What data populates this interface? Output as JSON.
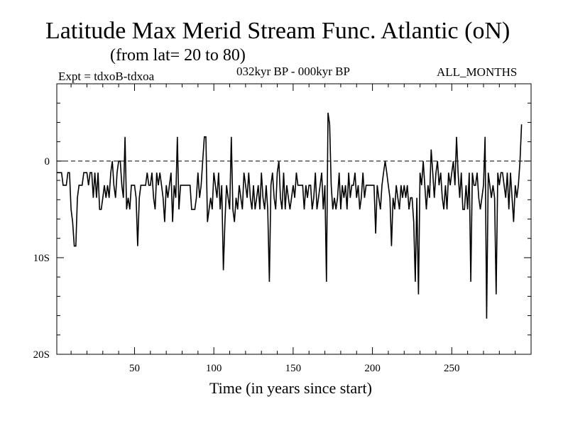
{
  "header": {
    "title": "Latitude Max Merid Stream Func. Atlantic (oN)",
    "subtitle": "(from lat= 20 to 80)",
    "experiment": "Expt = tdxoB-tdxoa",
    "period": "032kyr BP - 000kyr BP",
    "months": "ALL_MONTHS"
  },
  "chart_data": {
    "type": "line",
    "title": "Latitude Max Merid Stream Func. Atlantic (oN)",
    "subtitle": "(from lat= 20 to 80)",
    "xlabel": "Time (in years since start)",
    "ylabel": "",
    "xlim": [
      1,
      300
    ],
    "ylim": [
      -20,
      8
    ],
    "x_ticks": [
      50,
      100,
      150,
      200,
      250
    ],
    "x_tick_labels": [
      "50",
      "100",
      "150",
      "200",
      "250"
    ],
    "y_ticks": [
      0,
      -10,
      -20
    ],
    "y_tick_labels": [
      "0",
      "10S",
      "20S"
    ],
    "reference_line": {
      "y": 0,
      "style": "dashed"
    },
    "grid": false,
    "x_start": 1,
    "x_step": 1,
    "series": [
      {
        "values": [
          -1.2,
          -1.2,
          -1.2,
          -1.2,
          -2.5,
          -2.5,
          -2.5,
          -1.2,
          -1.2,
          -5.0,
          -6.3,
          -8.8,
          -8.8,
          -3.8,
          -2.5,
          -2.5,
          -2.5,
          -1.2,
          -1.2,
          -1.2,
          -2.5,
          -1.2,
          -1.2,
          -3.8,
          -1.2,
          -3.8,
          -1.2,
          -5.0,
          -5.0,
          -3.8,
          -2.5,
          -3.8,
          -2.5,
          -3.8,
          -1.2,
          0.0,
          -2.5,
          -3.8,
          -1.2,
          0.0,
          0.0,
          -2.5,
          -3.8,
          2.5,
          -5.0,
          -3.8,
          -5.0,
          -2.5,
          -2.5,
          -2.5,
          -3.8,
          -8.8,
          -3.8,
          -2.5,
          -2.5,
          -2.5,
          -2.5,
          -1.2,
          -2.5,
          -2.5,
          -1.2,
          -3.8,
          -5.0,
          -1.2,
          -2.5,
          -1.2,
          -2.5,
          -3.8,
          -6.3,
          -2.5,
          -3.8,
          -2.5,
          -1.2,
          -6.3,
          -2.5,
          -3.8,
          2.5,
          -5.0,
          -2.5,
          -2.5,
          -2.5,
          -2.5,
          -2.5,
          -2.5,
          -2.5,
          -5.0,
          -5.0,
          -5.0,
          -3.8,
          -1.2,
          -3.8,
          -2.5,
          0.0,
          2.5,
          2.5,
          -6.3,
          -5.0,
          -3.8,
          -5.0,
          -1.2,
          -2.5,
          -3.8,
          -1.2,
          -5.0,
          -2.5,
          -11.3,
          -6.3,
          -2.5,
          -3.8,
          -5.0,
          2.5,
          -5.0,
          -6.3,
          -3.8,
          -5.0,
          -2.5,
          -3.8,
          -5.0,
          -1.2,
          -2.5,
          -3.8,
          -1.2,
          -3.8,
          -5.0,
          -2.5,
          -5.0,
          -3.8,
          -2.5,
          -5.0,
          -1.2,
          -3.8,
          -5.0,
          -2.5,
          -5.0,
          -12.5,
          -2.5,
          -1.2,
          -3.8,
          -5.0,
          -1.2,
          0.0,
          -3.8,
          -5.0,
          -1.2,
          -5.0,
          -2.5,
          -3.8,
          -5.0,
          -3.8,
          -2.5,
          -3.8,
          -1.2,
          -2.5,
          -2.5,
          -2.5,
          -2.5,
          -5.0,
          -2.5,
          -3.8,
          -2.5,
          -2.5,
          -5.0,
          -3.8,
          -1.2,
          -5.0,
          -3.8,
          -2.5,
          -1.2,
          -5.0,
          -2.5,
          -12.5,
          5.0,
          3.8,
          -2.5,
          -5.0,
          -3.8,
          -5.0,
          -3.8,
          -1.2,
          -5.0,
          -2.5,
          -3.8,
          -2.5,
          -5.0,
          -1.2,
          -3.8,
          -2.5,
          -2.5,
          -1.2,
          -3.8,
          -2.5,
          -5.0,
          -3.8,
          -1.2,
          -3.8,
          -2.5,
          -2.5,
          -2.5,
          -2.5,
          -2.5,
          -2.5,
          -7.5,
          -2.5,
          -3.8,
          -5.0,
          -2.5,
          -1.2,
          0.0,
          -1.2,
          -2.5,
          -3.8,
          -8.8,
          -3.8,
          -5.0,
          -2.5,
          -3.8,
          -5.0,
          -2.5,
          -3.8,
          -2.5,
          -3.8,
          -2.5,
          -5.0,
          -3.8,
          -3.8,
          -6.3,
          -12.5,
          -3.8,
          -13.8,
          -1.2,
          -2.5,
          0.0,
          -2.5,
          -5.0,
          -2.5,
          -3.8,
          1.2,
          -1.2,
          -3.8,
          -1.2,
          0.0,
          -2.5,
          -1.2,
          -3.8,
          -5.0,
          -2.5,
          -5.0,
          -1.2,
          -2.5,
          -1.2,
          0.0,
          -2.5,
          2.5,
          -1.2,
          -3.8,
          -1.2,
          -5.0,
          -5.0,
          -2.5,
          -5.0,
          -1.2,
          -12.5,
          -1.2,
          -2.5,
          -2.5,
          -1.2,
          -3.8,
          -5.0,
          -3.8,
          -2.5,
          2.5,
          -16.3,
          -1.2,
          -2.5,
          -3.8,
          -2.5,
          -3.8,
          -13.8,
          -1.2,
          -2.5,
          -1.2,
          -1.2,
          -2.5,
          -3.8,
          -1.2,
          -5.0,
          -1.2,
          -3.8,
          -6.3,
          -2.5,
          -3.8,
          -2.5,
          0.0,
          3.8
        ]
      }
    ]
  }
}
